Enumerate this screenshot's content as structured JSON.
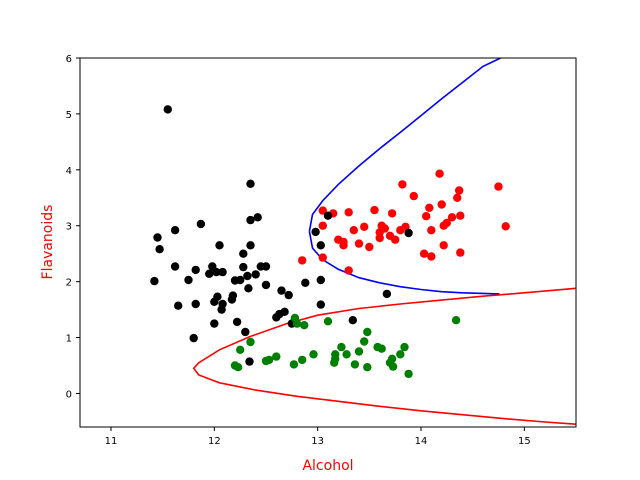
{
  "chart_data": {
    "type": "scatter",
    "title": "",
    "xlabel": "Alcohol",
    "ylabel": "Flavanoids",
    "label_color": "#ff0000",
    "xlim": [
      10.7,
      15.5
    ],
    "ylim": [
      -0.6,
      6.0
    ],
    "x_ticks": [
      "11",
      "12",
      "13",
      "14",
      "15"
    ],
    "y_ticks": [
      "0",
      "1",
      "2",
      "3",
      "4",
      "5",
      "6"
    ],
    "grid": false,
    "series": [
      {
        "color": "#ff0000",
        "points": [
          [
            13.05,
            3.27
          ],
          [
            13.15,
            3.22
          ],
          [
            13.05,
            3.0
          ],
          [
            13.2,
            2.75
          ],
          [
            13.25,
            2.65
          ],
          [
            13.3,
            3.24
          ],
          [
            13.35,
            2.92
          ],
          [
            13.4,
            2.68
          ],
          [
            13.45,
            2.98
          ],
          [
            13.5,
            2.62
          ],
          [
            13.55,
            3.28
          ],
          [
            13.6,
            2.88
          ],
          [
            13.6,
            2.78
          ],
          [
            13.62,
            3.0
          ],
          [
            13.65,
            2.95
          ],
          [
            13.7,
            2.82
          ],
          [
            13.72,
            3.22
          ],
          [
            13.75,
            2.75
          ],
          [
            13.8,
            2.92
          ],
          [
            13.82,
            3.74
          ],
          [
            13.85,
            2.98
          ],
          [
            13.93,
            3.53
          ],
          [
            14.05,
            3.17
          ],
          [
            14.08,
            3.32
          ],
          [
            14.1,
            2.45
          ],
          [
            14.1,
            2.92
          ],
          [
            14.18,
            3.93
          ],
          [
            14.2,
            3.38
          ],
          [
            14.22,
            2.65
          ],
          [
            14.22,
            3.0
          ],
          [
            14.25,
            3.05
          ],
          [
            14.3,
            3.15
          ],
          [
            14.35,
            3.5
          ],
          [
            14.37,
            3.63
          ],
          [
            14.38,
            3.18
          ],
          [
            14.38,
            2.52
          ],
          [
            14.75,
            3.7
          ],
          [
            14.82,
            2.99
          ],
          [
            12.85,
            2.38
          ],
          [
            13.05,
            2.43
          ],
          [
            13.3,
            2.2
          ],
          [
            14.03,
            2.5
          ],
          [
            13.25,
            2.71
          ]
        ]
      },
      {
        "color": "#000000",
        "points": [
          [
            11.55,
            5.08
          ],
          [
            11.42,
            2.01
          ],
          [
            11.45,
            2.79
          ],
          [
            11.47,
            2.58
          ],
          [
            11.62,
            2.92
          ],
          [
            11.62,
            2.27
          ],
          [
            11.65,
            1.57
          ],
          [
            11.75,
            2.03
          ],
          [
            11.8,
            0.99
          ],
          [
            11.82,
            2.21
          ],
          [
            11.82,
            1.6
          ],
          [
            11.87,
            3.03
          ],
          [
            11.95,
            2.14
          ],
          [
            11.98,
            2.27
          ],
          [
            12.0,
            1.25
          ],
          [
            12.0,
            1.64
          ],
          [
            12.02,
            2.17
          ],
          [
            12.03,
            1.73
          ],
          [
            12.05,
            2.65
          ],
          [
            12.07,
            1.5
          ],
          [
            12.08,
            1.6
          ],
          [
            12.08,
            2.17
          ],
          [
            12.18,
            1.75
          ],
          [
            12.17,
            1.68
          ],
          [
            12.2,
            2.02
          ],
          [
            12.22,
            1.28
          ],
          [
            12.25,
            2.03
          ],
          [
            12.28,
            2.5
          ],
          [
            12.28,
            2.26
          ],
          [
            12.3,
            1.1
          ],
          [
            12.32,
            2.1
          ],
          [
            12.33,
            1.88
          ],
          [
            12.35,
            2.65
          ],
          [
            12.35,
            3.1
          ],
          [
            12.35,
            3.75
          ],
          [
            12.4,
            2.13
          ],
          [
            12.42,
            3.15
          ],
          [
            12.45,
            2.27
          ],
          [
            12.5,
            2.27
          ],
          [
            12.5,
            1.94
          ],
          [
            12.6,
            1.36
          ],
          [
            12.63,
            1.42
          ],
          [
            12.65,
            1.84
          ],
          [
            12.68,
            1.46
          ],
          [
            12.72,
            1.76
          ],
          [
            12.75,
            1.25
          ],
          [
            12.88,
            1.98
          ],
          [
            12.98,
            2.89
          ],
          [
            13.03,
            2.65
          ],
          [
            13.03,
            2.03
          ],
          [
            13.03,
            1.59
          ],
          [
            13.1,
            3.18
          ],
          [
            13.34,
            1.31
          ],
          [
            13.67,
            1.78
          ],
          [
            13.88,
            2.87
          ],
          [
            12.34,
            0.57
          ]
        ]
      },
      {
        "color": "#008000",
        "points": [
          [
            12.2,
            0.5
          ],
          [
            12.23,
            0.47
          ],
          [
            12.25,
            0.78
          ],
          [
            12.35,
            0.92
          ],
          [
            12.5,
            0.58
          ],
          [
            12.53,
            0.6
          ],
          [
            12.6,
            0.66
          ],
          [
            12.77,
            0.52
          ],
          [
            12.78,
            1.35
          ],
          [
            12.8,
            1.25
          ],
          [
            12.85,
            0.6
          ],
          [
            12.87,
            1.22
          ],
          [
            12.96,
            0.7
          ],
          [
            13.1,
            1.29
          ],
          [
            13.16,
            0.55
          ],
          [
            13.17,
            0.7
          ],
          [
            13.17,
            0.62
          ],
          [
            13.23,
            0.83
          ],
          [
            13.28,
            0.7
          ],
          [
            13.36,
            0.52
          ],
          [
            13.4,
            0.75
          ],
          [
            13.45,
            0.93
          ],
          [
            13.48,
            0.47
          ],
          [
            13.48,
            1.1
          ],
          [
            13.58,
            0.83
          ],
          [
            13.62,
            0.8
          ],
          [
            13.7,
            0.55
          ],
          [
            13.72,
            0.62
          ],
          [
            13.73,
            0.48
          ],
          [
            13.8,
            0.7
          ],
          [
            13.84,
            0.83
          ],
          [
            13.88,
            0.35
          ],
          [
            14.34,
            1.31
          ]
        ]
      }
    ],
    "boundaries": [
      {
        "color": "#0000ff",
        "points": [
          [
            12.92,
            2.9
          ],
          [
            12.95,
            2.6
          ],
          [
            13.05,
            2.39
          ],
          [
            13.2,
            2.22
          ],
          [
            13.4,
            2.07
          ],
          [
            13.6,
            1.98
          ],
          [
            13.8,
            1.91
          ],
          [
            14.0,
            1.86
          ],
          [
            14.2,
            1.82
          ],
          [
            14.4,
            1.8
          ],
          [
            14.6,
            1.79
          ],
          [
            14.76,
            1.78
          ],
          [
            12.95,
            3.2
          ],
          [
            13.05,
            3.45
          ],
          [
            13.2,
            3.74
          ],
          [
            13.4,
            4.07
          ],
          [
            13.6,
            4.38
          ],
          [
            13.8,
            4.67
          ],
          [
            14.0,
            4.97
          ],
          [
            14.2,
            5.27
          ],
          [
            14.4,
            5.56
          ],
          [
            14.6,
            5.85
          ],
          [
            14.77,
            6.0
          ]
        ]
      },
      {
        "color": "#ff0000",
        "points": [
          [
            12.7,
            1.25
          ],
          [
            13.0,
            1.4
          ],
          [
            13.4,
            1.52
          ],
          [
            13.8,
            1.6
          ],
          [
            14.2,
            1.67
          ],
          [
            14.6,
            1.74
          ],
          [
            15.0,
            1.8
          ],
          [
            15.5,
            1.88
          ],
          [
            12.35,
            1.02
          ],
          [
            12.05,
            0.78
          ],
          [
            11.85,
            0.55
          ],
          [
            11.8,
            0.45
          ],
          [
            11.85,
            0.33
          ],
          [
            12.05,
            0.19
          ],
          [
            12.4,
            0.06
          ],
          [
            12.8,
            -0.05
          ],
          [
            13.2,
            -0.14
          ],
          [
            13.6,
            -0.23
          ],
          [
            14.0,
            -0.31
          ],
          [
            14.4,
            -0.38
          ],
          [
            14.8,
            -0.45
          ],
          [
            15.2,
            -0.51
          ],
          [
            15.5,
            -0.55
          ]
        ]
      }
    ]
  }
}
